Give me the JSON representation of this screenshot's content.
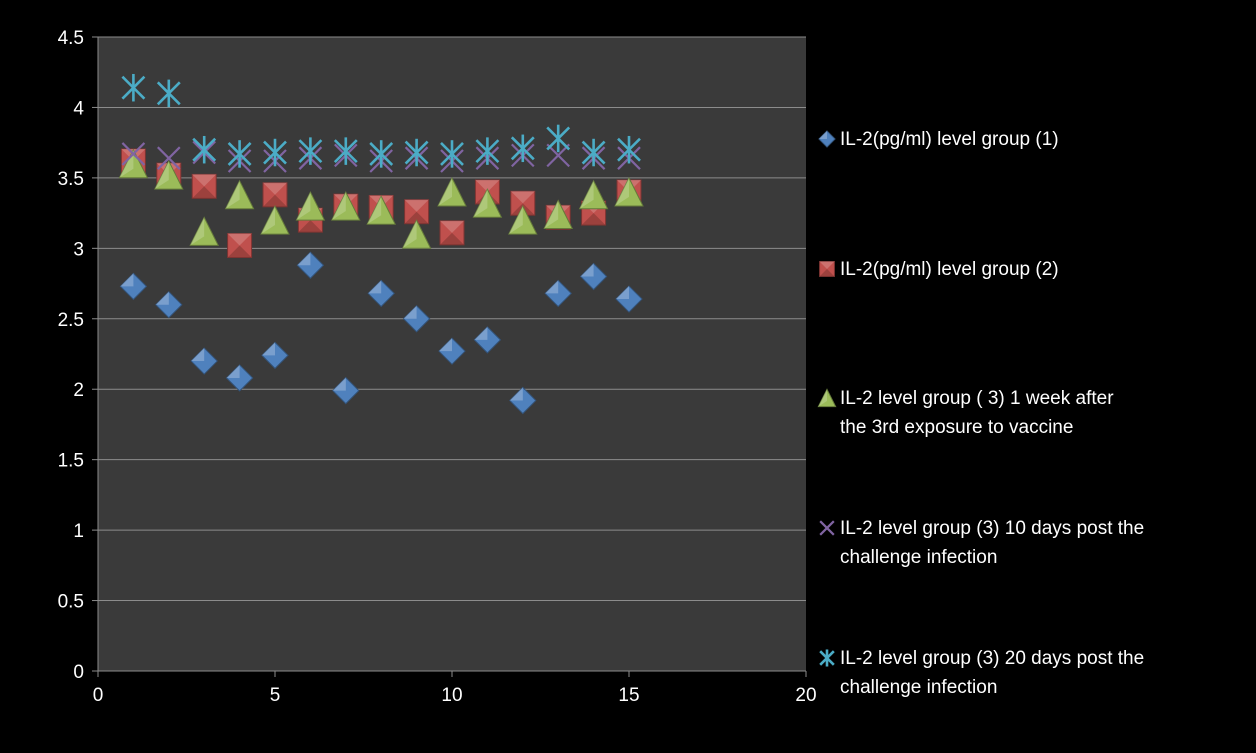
{
  "chart_data": {
    "type": "scatter",
    "title": "",
    "xlabel": "",
    "ylabel": "",
    "xlim": [
      0,
      20
    ],
    "ylim": [
      0,
      4.5
    ],
    "x_ticks": [
      "0",
      "5",
      "10",
      "15",
      "20"
    ],
    "y_ticks": [
      "0",
      "0.5",
      "1",
      "1.5",
      "2",
      "2.5",
      "3",
      "3.5",
      "4",
      "4.5"
    ],
    "grid": "horizontal",
    "legend_position": "right",
    "background": "#3a3a3a",
    "series": [
      {
        "name": "IL-2(pg/ml) level group (1)",
        "marker": "diamond",
        "color": "#4f81bd",
        "legend_lines": [
          "IL-2(pg/ml) level group (1)"
        ],
        "x": [
          1,
          2,
          3,
          4,
          5,
          6,
          7,
          8,
          9,
          10,
          11,
          12,
          13,
          14,
          15
        ],
        "y": [
          2.73,
          2.6,
          2.2,
          2.08,
          2.24,
          2.88,
          1.99,
          2.68,
          2.5,
          2.27,
          2.35,
          1.92,
          2.68,
          2.8,
          2.64
        ]
      },
      {
        "name": "IL-2(pg/ml) level group (2)",
        "marker": "square",
        "color": "#c0504d",
        "legend_lines": [
          "IL-2(pg/ml) level group (2)"
        ],
        "x": [
          1,
          2,
          3,
          4,
          5,
          6,
          7,
          8,
          9,
          10,
          11,
          12,
          13,
          14,
          15
        ],
        "y": [
          3.62,
          3.52,
          3.44,
          3.02,
          3.38,
          3.2,
          3.3,
          3.29,
          3.26,
          3.11,
          3.4,
          3.32,
          3.22,
          3.25,
          3.4
        ]
      },
      {
        "name": "IL-2 level group ( 3) 1 week after the 3rd exposure to vaccine",
        "marker": "triangle",
        "color": "#9bbb59",
        "legend_lines": [
          "IL-2 level group ( 3) 1 week after",
          "the 3rd exposure to vaccine"
        ],
        "x": [
          1,
          2,
          3,
          4,
          5,
          6,
          7,
          8,
          9,
          10,
          11,
          12,
          13,
          14,
          15
        ],
        "y": [
          3.6,
          3.52,
          3.12,
          3.38,
          3.2,
          3.3,
          3.3,
          3.27,
          3.1,
          3.4,
          3.32,
          3.2,
          3.24,
          3.38,
          3.4
        ]
      },
      {
        "name": "IL-2 level group (3) 10 days post the challenge infection",
        "marker": "x",
        "color": "#8064a2",
        "legend_lines": [
          "IL-2 level group (3) 10 days post the",
          "challenge infection"
        ],
        "x": [
          1,
          2,
          3,
          4,
          5,
          6,
          7,
          8,
          9,
          10,
          11,
          12,
          13,
          14,
          15
        ],
        "y": [
          3.67,
          3.64,
          3.68,
          3.62,
          3.62,
          3.64,
          3.66,
          3.62,
          3.64,
          3.62,
          3.64,
          3.66,
          3.66,
          3.64,
          3.64
        ]
      },
      {
        "name": "IL-2 level group (3) 20 days post the challenge infection",
        "marker": "star",
        "color": "#4bacc6",
        "legend_lines": [
          "IL-2 level group (3) 20 days post the",
          "challenge infection"
        ],
        "x": [
          1,
          2,
          3,
          4,
          5,
          6,
          7,
          8,
          9,
          10,
          11,
          12,
          13,
          14,
          15
        ],
        "y": [
          4.14,
          4.1,
          3.7,
          3.67,
          3.68,
          3.69,
          3.69,
          3.67,
          3.68,
          3.67,
          3.69,
          3.71,
          3.78,
          3.68,
          3.7
        ]
      }
    ]
  }
}
